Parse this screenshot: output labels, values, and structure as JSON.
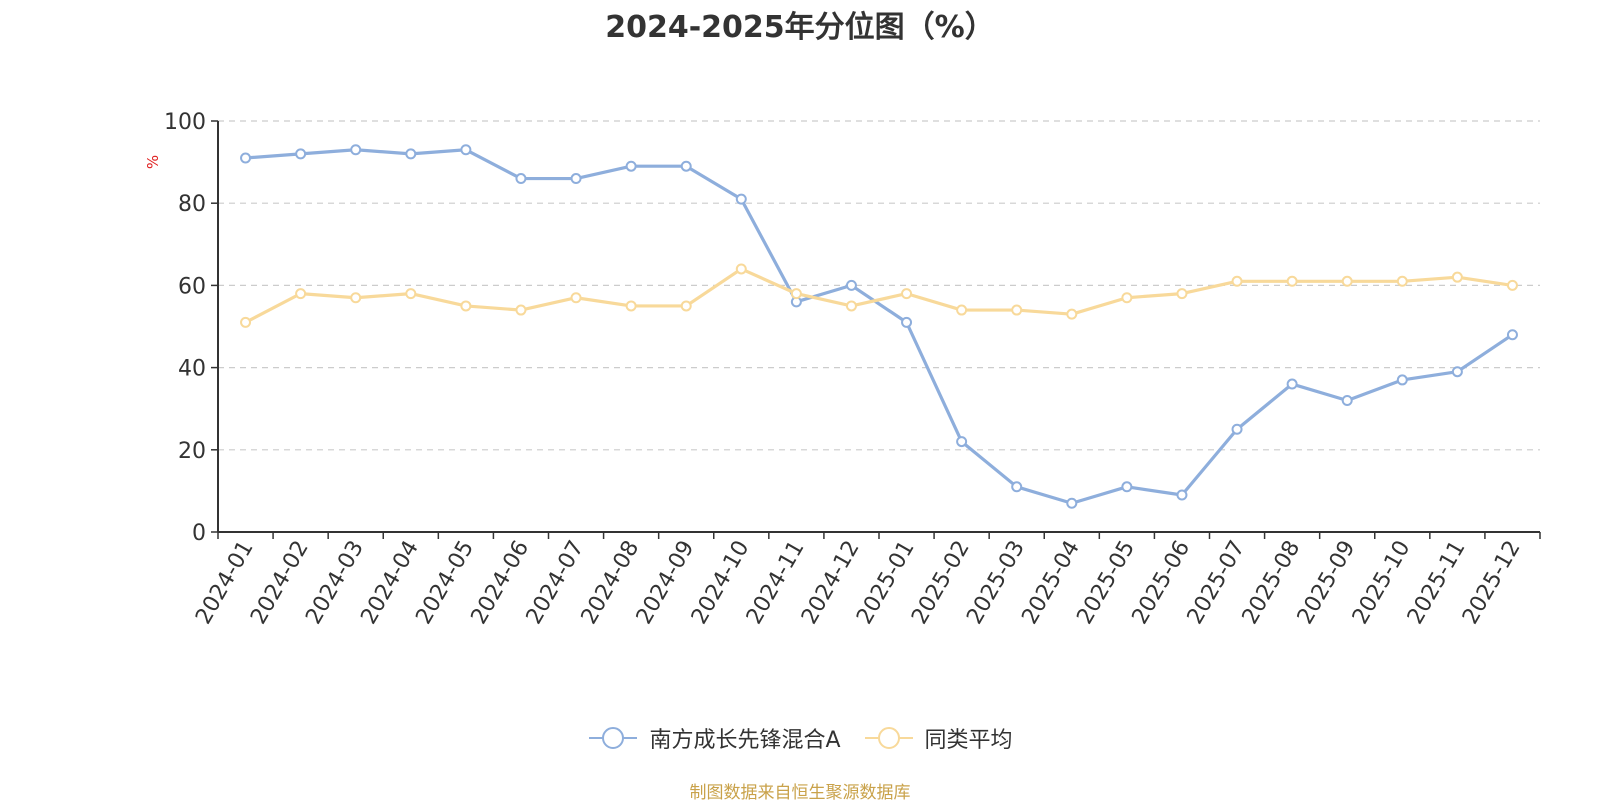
{
  "chart_data": {
    "type": "line",
    "title": "2024-2025年分位图（%）",
    "ylabel": "%",
    "ylim": [
      0,
      100
    ],
    "yticks": [
      0,
      20,
      40,
      60,
      80,
      100
    ],
    "grid": true,
    "legend_position": "bottom",
    "categories": [
      "2024-01",
      "2024-02",
      "2024-03",
      "2024-04",
      "2024-05",
      "2024-06",
      "2024-07",
      "2024-08",
      "2024-09",
      "2024-10",
      "2024-11",
      "2024-12",
      "2025-01",
      "2025-02",
      "2025-03",
      "2025-04",
      "2025-05",
      "2025-06",
      "2025-07",
      "2025-08",
      "2025-09",
      "2025-10",
      "2025-11",
      "2025-12"
    ],
    "series": [
      {
        "name": "南方成长先锋混合A",
        "color": "#8eaedc",
        "values": [
          91,
          92,
          93,
          92,
          93,
          86,
          86,
          89,
          89,
          81,
          56,
          60,
          51,
          22,
          11,
          7,
          11,
          9,
          25,
          36,
          32,
          37,
          39,
          48
        ]
      },
      {
        "name": "同类平均",
        "color": "#f8d99a",
        "values": [
          51,
          58,
          57,
          58,
          55,
          54,
          57,
          55,
          55,
          64,
          58,
          55,
          58,
          54,
          54,
          53,
          57,
          58,
          61,
          61,
          61,
          61,
          62,
          60
        ]
      }
    ]
  },
  "source": "制图数据来自恒生聚源数据库"
}
